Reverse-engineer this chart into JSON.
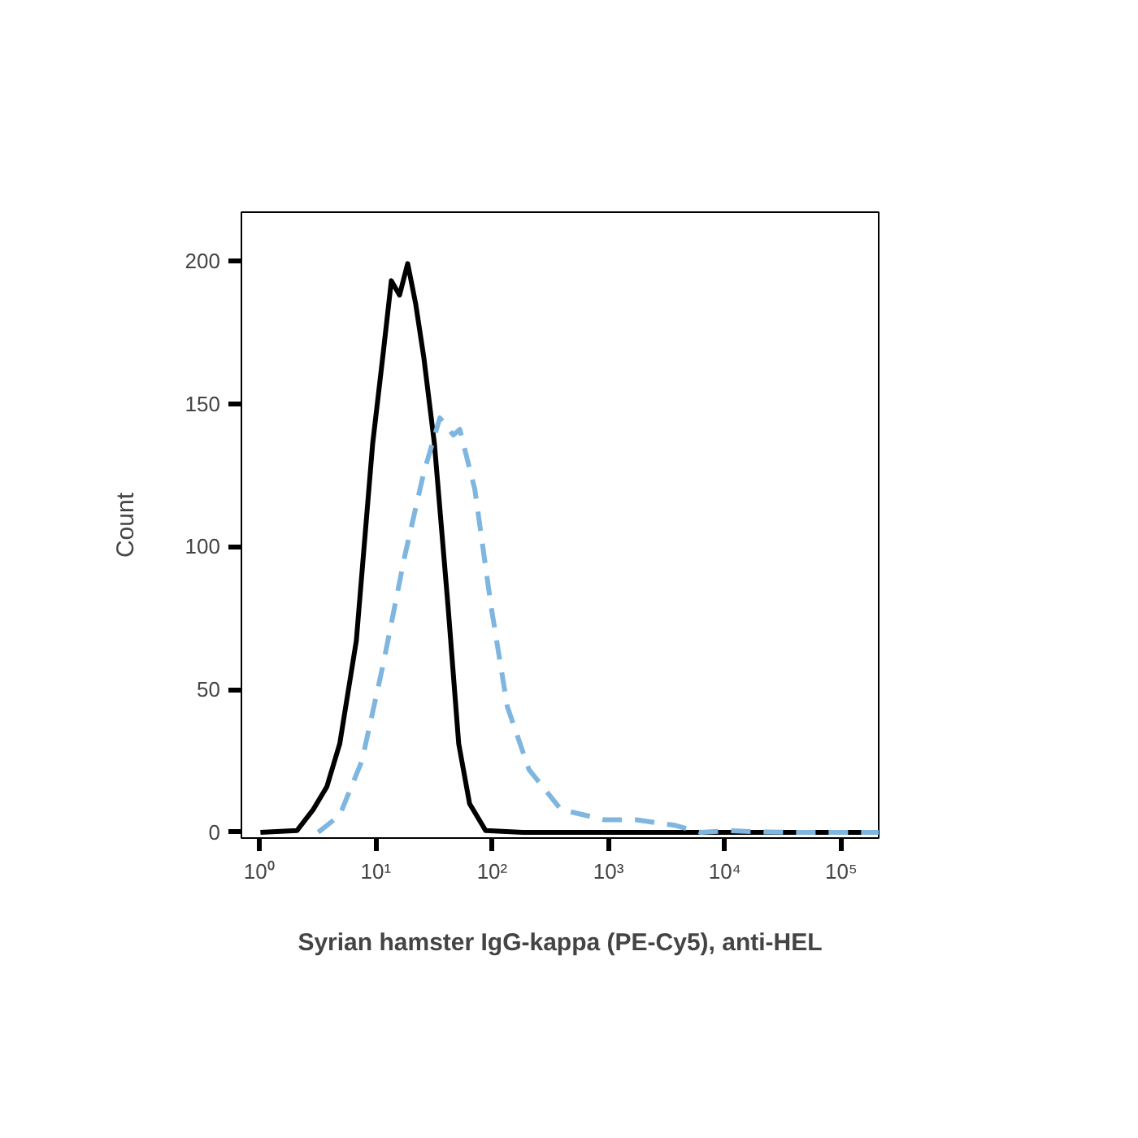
{
  "chart_data": {
    "type": "line",
    "xlabel": "Syrian hamster IgG-kappa (PE-Cy5), anti-HEL",
    "ylabel": "Count",
    "log": "x",
    "grid": false,
    "marker": "none",
    "xlim": [
      0.7,
      210000
    ],
    "ylim": [
      -2,
      217
    ],
    "xticks": [
      {
        "value": 1,
        "label": "10⁰"
      },
      {
        "value": 10,
        "label": "10¹"
      },
      {
        "value": 100,
        "label": "10²"
      },
      {
        "value": 1000,
        "label": "10³"
      },
      {
        "value": 10000,
        "label": "10⁴"
      },
      {
        "value": 100000,
        "label": "10⁵"
      }
    ],
    "yticks": [
      0,
      50,
      100,
      150,
      200
    ],
    "series": [
      {
        "color": "#000000",
        "line_style": "solid",
        "x": [
          1.02,
          2.1,
          2.9,
          3.8,
          4.9,
          6.8,
          9.4,
          11.6,
          13.6,
          16.0,
          18.8,
          22.0,
          25.9,
          31.9,
          41.8,
          51.6,
          64,
          88,
          184,
          1000,
          210000
        ],
        "values": [
          0,
          0.6,
          8,
          16,
          31,
          67,
          136,
          168,
          193,
          188,
          199,
          185,
          166,
          136,
          79,
          31,
          10,
          0.6,
          0,
          0,
          0
        ]
      },
      {
        "color": "#7fb6e0",
        "line_style": "dashed",
        "x": [
          3.2,
          4.9,
          7.6,
          11.6,
          17.8,
          25.9,
          35.5,
          46.4,
          52.7,
          71,
          98,
          135,
          207,
          390,
          920,
          1730,
          3670,
          6200,
          10700,
          18000,
          40000,
          210000
        ],
        "values": [
          0,
          6,
          25,
          59,
          97,
          126,
          145,
          139,
          141,
          120,
          79,
          44,
          22,
          8,
          4.4,
          4.4,
          2.5,
          0,
          0.6,
          0.2,
          0,
          0
        ]
      }
    ]
  }
}
